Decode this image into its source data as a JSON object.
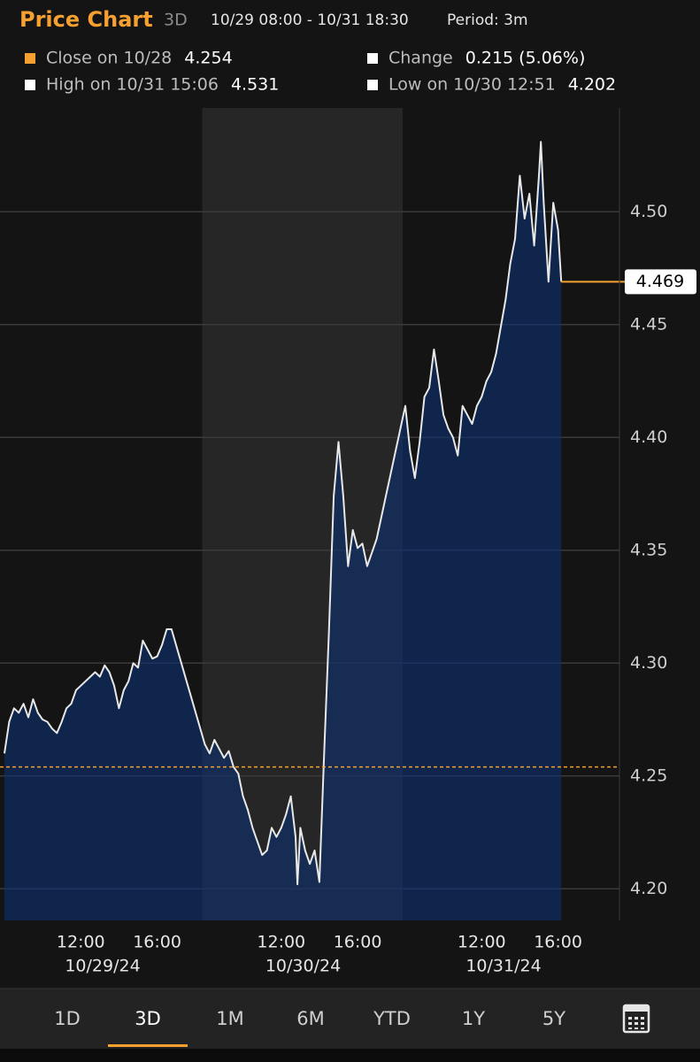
{
  "header": {
    "title": "Price Chart",
    "range": "3D",
    "span": "10/29 08:00 - 10/31 18:30",
    "period": "Period: 3m"
  },
  "legend": [
    {
      "label": "Close on 10/28",
      "value": 4.254,
      "color": "#f5a030"
    },
    {
      "label": "Change",
      "value": "0.215 (5.06%)",
      "color": "#ffffff"
    },
    {
      "label": "High on 10/31 15:06",
      "value": 4.531,
      "color": "#ffffff"
    },
    {
      "label": "Low on 10/30 12:51",
      "value": 4.202,
      "color": "#ffffff"
    }
  ],
  "chart_data": {
    "type": "area",
    "x_dates": [
      "10/29/24",
      "10/30/24",
      "10/31/24"
    ],
    "xlim": [
      "10/29/24 08:00",
      "10/31/24 18:30"
    ],
    "xticks": [
      {
        "value": "10/29/24 12:00",
        "label": "12:00"
      },
      {
        "value": "10/29/24 16:00",
        "label": "16:00"
      },
      {
        "value": "10/30/24 12:00",
        "label": "12:00"
      },
      {
        "value": "10/30/24 16:00",
        "label": "16:00"
      },
      {
        "value": "10/31/24 12:00",
        "label": "12:00"
      },
      {
        "value": "10/31/24 16:00",
        "label": "16:00"
      }
    ],
    "ylim": [
      4.186,
      4.546
    ],
    "yticks": [
      {
        "value": 4.2,
        "label": "4.20"
      },
      4.25,
      {
        "value": 4.3,
        "label": "4.30"
      },
      4.35,
      {
        "value": 4.4,
        "label": "4.40"
      },
      4.45,
      {
        "value": 4.5,
        "label": "4.50"
      }
    ],
    "grid": true,
    "reference_line": 4.254,
    "x": [
      "10/29/24 08:00",
      "10/29/24 08:15",
      "10/29/24 08:30",
      "10/29/24 08:45",
      "10/29/24 09:00",
      "10/29/24 09:15",
      "10/29/24 09:30",
      "10/29/24 09:45",
      "10/29/24 10:00",
      "10/29/24 10:15",
      "10/29/24 10:30",
      "10/29/24 10:45",
      "10/29/24 11:00",
      "10/29/24 11:15",
      "10/29/24 11:30",
      "10/29/24 11:45",
      "10/29/24 12:00",
      "10/29/24 12:15",
      "10/29/24 12:30",
      "10/29/24 12:45",
      "10/29/24 13:00",
      "10/29/24 13:15",
      "10/29/24 13:30",
      "10/29/24 13:45",
      "10/29/24 14:00",
      "10/29/24 14:15",
      "10/29/24 14:30",
      "10/29/24 14:45",
      "10/29/24 15:00",
      "10/29/24 15:15",
      "10/29/24 15:30",
      "10/29/24 15:45",
      "10/29/24 16:00",
      "10/29/24 16:15",
      "10/29/24 16:30",
      "10/29/24 16:45",
      "10/30/24 08:00",
      "10/30/24 08:15",
      "10/30/24 08:30",
      "10/30/24 08:45",
      "10/30/24 09:00",
      "10/30/24 09:15",
      "10/30/24 09:30",
      "10/30/24 09:45",
      "10/30/24 10:00",
      "10/30/24 10:15",
      "10/30/24 10:30",
      "10/30/24 10:45",
      "10/30/24 11:00",
      "10/30/24 11:15",
      "10/30/24 11:30",
      "10/30/24 11:45",
      "10/30/24 12:00",
      "10/30/24 12:15",
      "10/30/24 12:30",
      "10/30/24 12:45",
      "10/30/24 12:51",
      "10/30/24 13:00",
      "10/30/24 13:15",
      "10/30/24 13:30",
      "10/30/24 13:45",
      "10/30/24 14:00",
      "10/30/24 14:15",
      "10/30/24 14:30",
      "10/30/24 14:45",
      "10/30/24 15:00",
      "10/30/24 15:15",
      "10/30/24 15:30",
      "10/30/24 15:45",
      "10/30/24 16:00",
      "10/30/24 16:15",
      "10/30/24 16:30",
      "10/30/24 16:45",
      "10/30/24 17:00",
      "10/31/24 08:00",
      "10/31/24 08:15",
      "10/31/24 08:30",
      "10/31/24 08:45",
      "10/31/24 09:00",
      "10/31/24 09:15",
      "10/31/24 09:30",
      "10/31/24 09:45",
      "10/31/24 10:00",
      "10/31/24 10:15",
      "10/31/24 10:30",
      "10/31/24 10:45",
      "10/31/24 11:00",
      "10/31/24 11:15",
      "10/31/24 11:30",
      "10/31/24 11:45",
      "10/31/24 12:00",
      "10/31/24 12:15",
      "10/31/24 12:30",
      "10/31/24 12:45",
      "10/31/24 13:00",
      "10/31/24 13:15",
      "10/31/24 13:30",
      "10/31/24 13:45",
      "10/31/24 14:00",
      "10/31/24 14:15",
      "10/31/24 14:30",
      "10/31/24 14:45",
      "10/31/24 15:00",
      "10/31/24 15:06",
      "10/31/24 15:15",
      "10/31/24 15:30",
      "10/31/24 15:45",
      "10/31/24 16:00",
      "10/31/24 16:10"
    ],
    "series": [
      {
        "name": "Price",
        "color": "#e8e8e8",
        "values": [
          4.26,
          4.274,
          4.28,
          4.278,
          4.282,
          4.276,
          4.284,
          4.278,
          4.275,
          4.274,
          4.271,
          4.269,
          4.274,
          4.28,
          4.282,
          4.288,
          4.29,
          4.292,
          4.294,
          4.296,
          4.294,
          4.299,
          4.296,
          4.29,
          4.28,
          4.288,
          4.292,
          4.3,
          4.298,
          4.31,
          4.306,
          4.302,
          4.303,
          4.308,
          4.315,
          4.315,
          4.264,
          4.26,
          4.266,
          4.262,
          4.258,
          4.261,
          4.254,
          4.251,
          4.241,
          4.235,
          4.227,
          4.221,
          4.215,
          4.217,
          4.227,
          4.223,
          4.227,
          4.233,
          4.241,
          4.223,
          4.202,
          4.227,
          4.217,
          4.211,
          4.217,
          4.203,
          4.26,
          4.314,
          4.374,
          4.398,
          4.374,
          4.343,
          4.359,
          4.351,
          4.353,
          4.343,
          4.349,
          4.355,
          4.414,
          4.394,
          4.382,
          4.398,
          4.418,
          4.422,
          4.439,
          4.425,
          4.41,
          4.404,
          4.4,
          4.392,
          4.414,
          4.41,
          4.406,
          4.414,
          4.418,
          4.425,
          4.429,
          4.437,
          4.449,
          4.461,
          4.477,
          4.488,
          4.516,
          4.497,
          4.508,
          4.485,
          4.516,
          4.531,
          4.504,
          4.469,
          4.504,
          4.492,
          4.469
        ]
      }
    ]
  },
  "tabs": [
    "1D",
    "3D",
    "1M",
    "6M",
    "YTD",
    "1Y",
    "5Y"
  ]
}
